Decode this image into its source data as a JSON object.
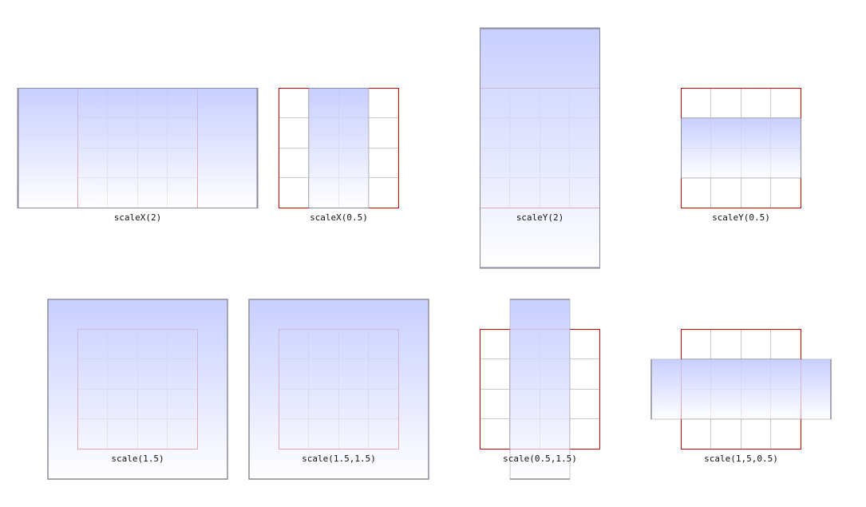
{
  "demos": [
    {
      "id": "scalex-2",
      "label": "scaleX(2)",
      "scale_x": 2,
      "scale_y": 1
    },
    {
      "id": "scalex-0-5",
      "label": "scaleX(0.5)",
      "scale_x": 0.5,
      "scale_y": 1
    },
    {
      "id": "scaley-2",
      "label": "scaleY(2)",
      "scale_x": 1,
      "scale_y": 2
    },
    {
      "id": "scaley-0-5",
      "label": "scaleY(0.5)",
      "scale_x": 1,
      "scale_y": 0.5
    },
    {
      "id": "scale-1-5",
      "label": "scale(1.5)",
      "scale_x": 1.5,
      "scale_y": 1.5
    },
    {
      "id": "scale-1-5-1-5",
      "label": "scale(1.5,1.5)",
      "scale_x": 1.5,
      "scale_y": 1.5
    },
    {
      "id": "scale-0-5-1-5",
      "label": "scale(0.5,1.5)",
      "scale_x": 0.5,
      "scale_y": 1.5
    },
    {
      "id": "scale-1-5-0-5",
      "label": "scale(1,5,0.5)",
      "scale_x": 1.5,
      "scale_y": 0.5
    }
  ],
  "colors": {
    "reference_border": "#cc0000",
    "grid_line": "#c8c8c8",
    "box_border": "#8a8a9a",
    "box_gradient_top": "#c4cbff",
    "box_gradient_bottom": "#ffffff"
  }
}
